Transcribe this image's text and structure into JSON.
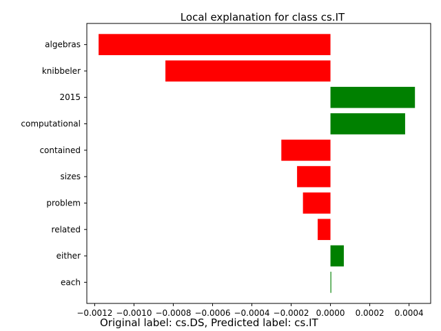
{
  "chart_data": {
    "type": "bar",
    "orientation": "horizontal",
    "title": "Local explanation for class cs.IT",
    "caption": "Original label: cs.DS, Predicted label: cs.IT",
    "categories": [
      "algebras",
      "knibbeler",
      "2015",
      "computational",
      "contained",
      "sizes",
      "problem",
      "related",
      "either",
      "each"
    ],
    "values": [
      -0.00118,
      -0.00084,
      0.00043,
      0.00038,
      -0.00025,
      -0.00017,
      -0.00014,
      -6.5e-05,
      6.8e-05,
      4e-06
    ],
    "xlim": [
      -0.00124,
      0.00051
    ],
    "xticks": [
      -0.0012,
      -0.001,
      -0.0008,
      -0.0006,
      -0.0004,
      -0.0002,
      0.0,
      0.0002,
      0.0004
    ],
    "xtick_labels": [
      "−0.0012",
      "−0.0010",
      "−0.0008",
      "−0.0006",
      "−0.0004",
      "−0.0002",
      "0.0000",
      "0.0002",
      "0.0004"
    ],
    "colors": {
      "positive": "#008000",
      "negative": "#ff0000"
    },
    "grid": false
  }
}
